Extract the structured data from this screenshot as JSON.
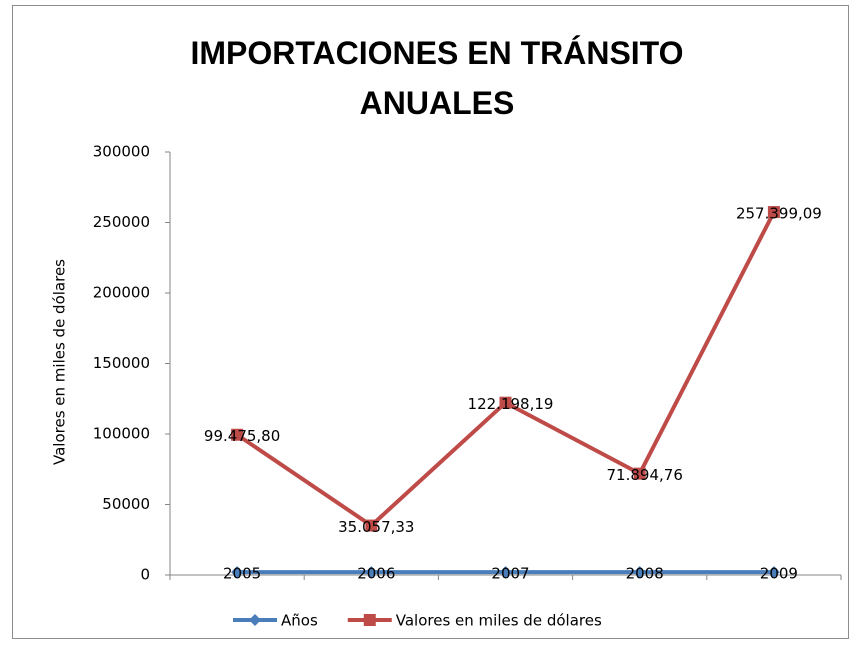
{
  "chart_data": {
    "type": "line",
    "title": "IMPORTACIONES EN TRÁNSITO ANUALES",
    "y_label": "Valores en miles de dólares",
    "categories": [
      null,
      null,
      null,
      null,
      null
    ],
    "series": [
      {
        "name": "Años",
        "color": "#4a7ebb",
        "marker": "diamond",
        "values": [
          2005,
          2006,
          2007,
          2008,
          2009
        ]
      },
      {
        "name": "Valores en miles de dólares",
        "color": "#be4b48",
        "marker": "square",
        "values": [
          99475.8,
          35057.33,
          122198.19,
          71894.76,
          257399.09
        ],
        "value_labels": [
          "99.475,80",
          "35.057,33",
          "122.198,19",
          "71.894,76",
          "257.399,09"
        ]
      }
    ],
    "ylim": [
      0,
      300000
    ],
    "yticks": [
      0,
      50000,
      100000,
      150000,
      200000,
      250000,
      300000
    ],
    "grid": false,
    "legend": "bottom"
  }
}
